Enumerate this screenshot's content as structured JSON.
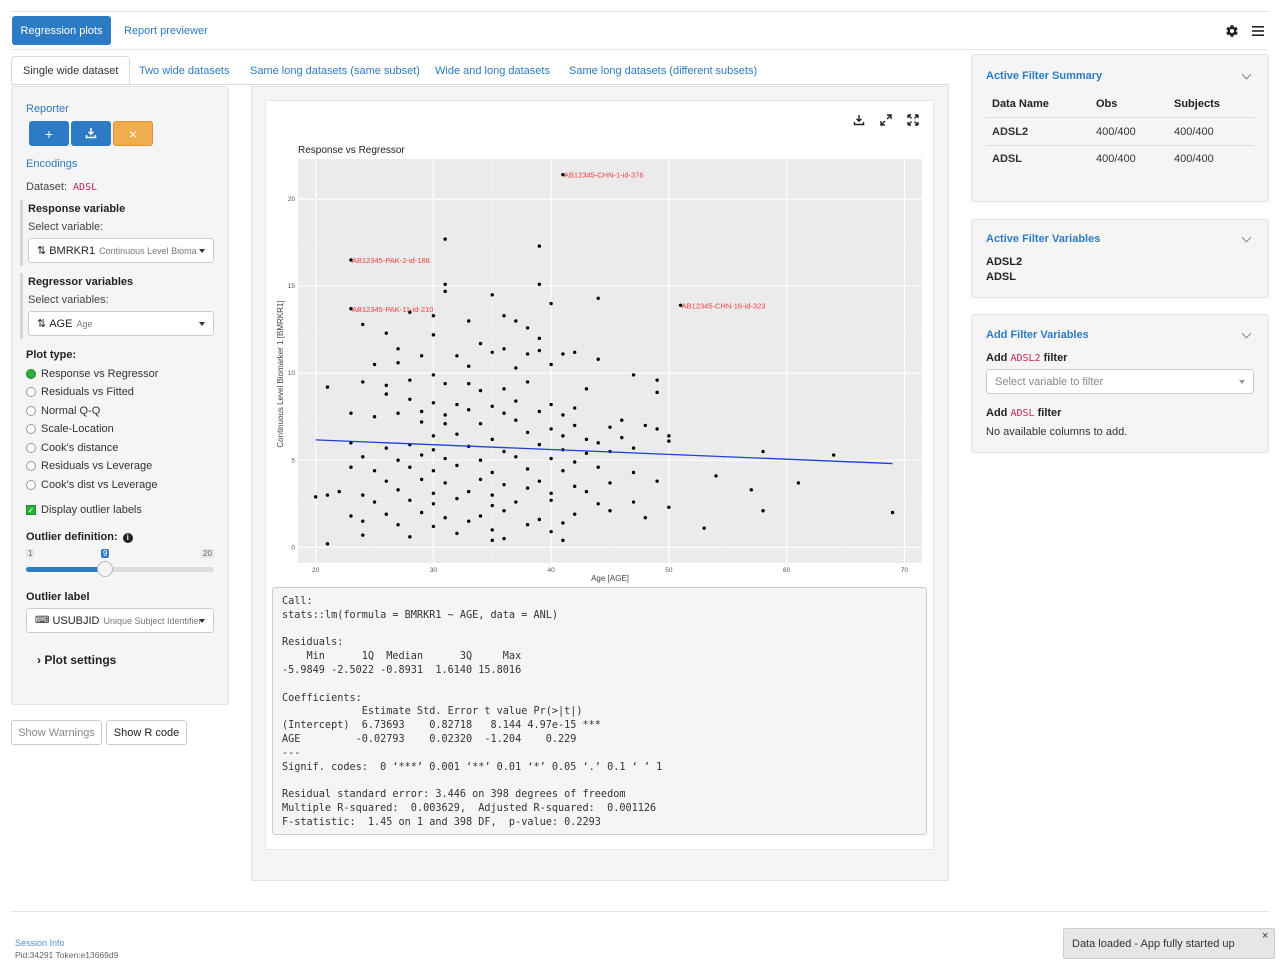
{
  "nav": {
    "active_tab": "Regression plots",
    "link": "Report previewer",
    "gear_icon": "gear-icon",
    "menu_icon": "hamburger-menu-icon"
  },
  "tabs": [
    {
      "label": "Single wide dataset",
      "active": true
    },
    {
      "label": "Two wide datasets",
      "active": false
    },
    {
      "label": "Same long datasets (same subset)",
      "active": false
    },
    {
      "label": "Wide and long datasets",
      "active": false
    },
    {
      "label": "Same long datasets (different subsets)",
      "active": false
    }
  ],
  "left": {
    "reporter_title": "Reporter",
    "reporter_buttons": {
      "add": "+",
      "download_icon": "download-icon",
      "reset": "×"
    },
    "encodings_title": "Encodings",
    "dataset_label": "Dataset:",
    "dataset_value": "ADSL",
    "response": {
      "title": "Response variable",
      "select_label": "Select variable:",
      "value": "BMRKR1",
      "value_sub": "Continuous Level Biomarker 1"
    },
    "regressor": {
      "title": "Regressor variables",
      "select_label": "Select variables:",
      "value": "AGE",
      "value_sub": "Age"
    },
    "plot_type": {
      "title": "Plot type:",
      "options": [
        "Response vs Regressor",
        "Residuals vs Fitted",
        "Normal Q-Q",
        "Scale-Location",
        "Cook's distance",
        "Residuals vs Leverage",
        "Cook's dist vs Leverage"
      ],
      "selected": 0
    },
    "display_outlier_labels": "Display outlier labels",
    "outlier_definition": {
      "title": "Outlier definition:",
      "min": "1",
      "max": "20",
      "value": "9"
    },
    "outlier_label": {
      "title": "Outlier label",
      "value": "USUBJID",
      "value_sub": "Unique Subject Identifier"
    },
    "plot_settings": "Plot settings"
  },
  "bottom_buttons": {
    "warnings": "Show Warnings",
    "rcode": "Show R code"
  },
  "plot_toolbar": {
    "download": "download-icon",
    "expand": "expand-icon",
    "fullscreen": "fullscreen-icon"
  },
  "chart_data": {
    "type": "scatter",
    "title": "Response vs Regressor",
    "xlabel": "Age [AGE]",
    "ylabel": "Continuous Level Biomarker 1 [BMRKR1]",
    "xlim": [
      18.5,
      71.5
    ],
    "ylim": [
      -0.9,
      22.3
    ],
    "x_ticks": [
      20,
      30,
      40,
      50,
      60,
      70
    ],
    "y_ticks": [
      0,
      5,
      10,
      15,
      20
    ],
    "grid": true,
    "background": "#ebebeb",
    "regression_line": {
      "x": [
        20,
        69
      ],
      "y": [
        6.17,
        4.81
      ],
      "color": "#1f3fd6"
    },
    "labels": [
      {
        "text": "AB12345-CHN-1-id-376",
        "x": 41,
        "y": 21.4
      },
      {
        "text": "AB12345-PAK-2-id-188",
        "x": 23,
        "y": 16.5
      },
      {
        "text": "AB12345-PAK-11-id-210",
        "x": 23,
        "y": 13.7
      },
      {
        "text": "AB12345-CHN-16-id-323",
        "x": 51,
        "y": 13.9
      }
    ],
    "points": [
      [
        41,
        21.4
      ],
      [
        23,
        16.5
      ],
      [
        23,
        13.7
      ],
      [
        51,
        13.9
      ],
      [
        31,
        17.7
      ],
      [
        39,
        17.3
      ],
      [
        39,
        15.1
      ],
      [
        31,
        15.1
      ],
      [
        31,
        14.7
      ],
      [
        35,
        14.5
      ],
      [
        40,
        14.0
      ],
      [
        44,
        14.3
      ],
      [
        36,
        13.3
      ],
      [
        30,
        13.3
      ],
      [
        28,
        13.5
      ],
      [
        24,
        12.8
      ],
      [
        33,
        13.0
      ],
      [
        37,
        13.0
      ],
      [
        38,
        12.6
      ],
      [
        26,
        12.3
      ],
      [
        30,
        12.2
      ],
      [
        34,
        11.7
      ],
      [
        27,
        11.4
      ],
      [
        38,
        11.1
      ],
      [
        42,
        11.2
      ],
      [
        29,
        11.0
      ],
      [
        32,
        11.0
      ],
      [
        35,
        11.2
      ],
      [
        36,
        11.4
      ],
      [
        39,
        11.3
      ],
      [
        41,
        11.1
      ],
      [
        44,
        10.8
      ],
      [
        25,
        10.5
      ],
      [
        33,
        10.4
      ],
      [
        37,
        10.3
      ],
      [
        40,
        10.5
      ],
      [
        30,
        9.9
      ],
      [
        47,
        9.9
      ],
      [
        21,
        9.2
      ],
      [
        24,
        9.5
      ],
      [
        26,
        9.3
      ],
      [
        28,
        9.6
      ],
      [
        31,
        9.4
      ],
      [
        34,
        9.0
      ],
      [
        36,
        9.1
      ],
      [
        38,
        9.5
      ],
      [
        43,
        9.1
      ],
      [
        49,
        9.6
      ],
      [
        49,
        8.9
      ],
      [
        26,
        8.8
      ],
      [
        28,
        8.5
      ],
      [
        30,
        8.3
      ],
      [
        32,
        8.2
      ],
      [
        35,
        8.1
      ],
      [
        37,
        8.4
      ],
      [
        40,
        8.2
      ],
      [
        42,
        8.0
      ],
      [
        23,
        7.7
      ],
      [
        25,
        7.5
      ],
      [
        27,
        7.7
      ],
      [
        29,
        7.8
      ],
      [
        31,
        7.6
      ],
      [
        33,
        7.9
      ],
      [
        36,
        7.7
      ],
      [
        39,
        7.8
      ],
      [
        41,
        7.6
      ],
      [
        29,
        7.2
      ],
      [
        31,
        7.1
      ],
      [
        34,
        7.1
      ],
      [
        37,
        7.3
      ],
      [
        40,
        6.8
      ],
      [
        42,
        7.0
      ],
      [
        45,
        6.9
      ],
      [
        48,
        7.0
      ],
      [
        49,
        6.8
      ],
      [
        30,
        6.4
      ],
      [
        32,
        6.5
      ],
      [
        35,
        6.2
      ],
      [
        38,
        6.6
      ],
      [
        41,
        6.4
      ],
      [
        43,
        6.2
      ],
      [
        46,
        6.3
      ],
      [
        50,
        6.1
      ],
      [
        50,
        6.4
      ],
      [
        44,
        6.0
      ],
      [
        23,
        6.0
      ],
      [
        26,
        5.7
      ],
      [
        28,
        5.9
      ],
      [
        30,
        5.6
      ],
      [
        33,
        5.8
      ],
      [
        36,
        5.5
      ],
      [
        39,
        5.9
      ],
      [
        41,
        5.6
      ],
      [
        43,
        5.4
      ],
      [
        45,
        5.5
      ],
      [
        47,
        5.7
      ],
      [
        24,
        5.2
      ],
      [
        27,
        5.0
      ],
      [
        29,
        5.3
      ],
      [
        31,
        5.1
      ],
      [
        34,
        5.0
      ],
      [
        37,
        5.2
      ],
      [
        40,
        5.1
      ],
      [
        42,
        4.9
      ],
      [
        58,
        5.5
      ],
      [
        64,
        5.3
      ],
      [
        23,
        4.6
      ],
      [
        25,
        4.4
      ],
      [
        28,
        4.6
      ],
      [
        30,
        4.4
      ],
      [
        32,
        4.7
      ],
      [
        35,
        4.3
      ],
      [
        38,
        4.5
      ],
      [
        41,
        4.4
      ],
      [
        44,
        4.6
      ],
      [
        47,
        4.3
      ],
      [
        26,
        3.8
      ],
      [
        29,
        3.9
      ],
      [
        31,
        3.7
      ],
      [
        34,
        3.9
      ],
      [
        36,
        3.6
      ],
      [
        39,
        3.8
      ],
      [
        42,
        3.5
      ],
      [
        45,
        3.7
      ],
      [
        49,
        3.8
      ],
      [
        22,
        3.2
      ],
      [
        24,
        3.0
      ],
      [
        27,
        3.3
      ],
      [
        30,
        3.1
      ],
      [
        33,
        3.2
      ],
      [
        35,
        3.0
      ],
      [
        38,
        3.4
      ],
      [
        40,
        3.1
      ],
      [
        43,
        3.2
      ],
      [
        54,
        4.1
      ],
      [
        61,
        3.7
      ],
      [
        20,
        2.9
      ],
      [
        21,
        3.0
      ],
      [
        25,
        2.6
      ],
      [
        28,
        2.7
      ],
      [
        30,
        2.5
      ],
      [
        32,
        2.8
      ],
      [
        35,
        2.4
      ],
      [
        37,
        2.6
      ],
      [
        40,
        2.7
      ],
      [
        44,
        2.5
      ],
      [
        47,
        2.6
      ],
      [
        50,
        2.3
      ],
      [
        57,
        3.3
      ],
      [
        23,
        1.8
      ],
      [
        26,
        1.9
      ],
      [
        29,
        2.0
      ],
      [
        31,
        1.7
      ],
      [
        34,
        1.8
      ],
      [
        36,
        2.1
      ],
      [
        39,
        1.6
      ],
      [
        42,
        1.9
      ],
      [
        45,
        2.1
      ],
      [
        48,
        1.7
      ],
      [
        58,
        2.1
      ],
      [
        69,
        2.0
      ],
      [
        24,
        1.5
      ],
      [
        27,
        1.3
      ],
      [
        30,
        1.2
      ],
      [
        33,
        1.5
      ],
      [
        35,
        1.0
      ],
      [
        38,
        1.3
      ],
      [
        41,
        1.4
      ],
      [
        53,
        1.1
      ],
      [
        24,
        0.7
      ],
      [
        28,
        0.6
      ],
      [
        32,
        0.8
      ],
      [
        36,
        0.5
      ],
      [
        40,
        0.9
      ],
      [
        21,
        0.2
      ],
      [
        35,
        0.4
      ],
      [
        41,
        0.4
      ],
      [
        46,
        7.3
      ],
      [
        33,
        9.4
      ],
      [
        27,
        10.6
      ],
      [
        39,
        12.0
      ]
    ]
  },
  "console": {
    "text": "Call:\nstats::lm(formula = BMRKR1 ~ AGE, data = ANL)\n\nResiduals:\n    Min      1Q  Median      3Q     Max \n-5.9849 -2.5022 -0.8931  1.6140 15.8016 \n\nCoefficients:\n             Estimate Std. Error t value Pr(>|t|)    \n(Intercept)  6.73693    0.82718   8.144 4.97e-15 ***\nAGE         -0.02793    0.02320  -1.204    0.229    \n---\nSignif. codes:  0 ‘***’ 0.001 ‘**’ 0.01 ‘*’ 0.05 ‘.’ 0.1 ‘ ’ 1\n\nResidual standard error: 3.446 on 398 degrees of freedom\nMultiple R-squared:  0.003629,\tAdjusted R-squared:  0.001126 \nF-statistic:  1.45 on 1 and 398 DF,  p-value: 0.2293"
  },
  "right": {
    "summary": {
      "title": "Active Filter Summary",
      "headers": [
        "Data Name",
        "Obs",
        "Subjects"
      ],
      "rows": [
        [
          "ADSL2",
          "400/400",
          "400/400"
        ],
        [
          "ADSL",
          "400/400",
          "400/400"
        ]
      ]
    },
    "variables": {
      "title": "Active Filter Variables",
      "items": [
        "ADSL2",
        "ADSL"
      ]
    },
    "add": {
      "title": "Add Filter Variables",
      "add1_prefix": "Add",
      "add1_code": "ADSL2",
      "add1_suffix": "filter",
      "placeholder": "Select variable to filter",
      "add2_prefix": "Add",
      "add2_code": "ADSL",
      "add2_suffix": "filter",
      "note": "No available columns to add."
    }
  },
  "footer": {
    "session": "Session Info",
    "pid": "Pid:34291 Token:e13669d9"
  },
  "toast": {
    "text": "Data loaded - App fully started up",
    "close": "×"
  }
}
